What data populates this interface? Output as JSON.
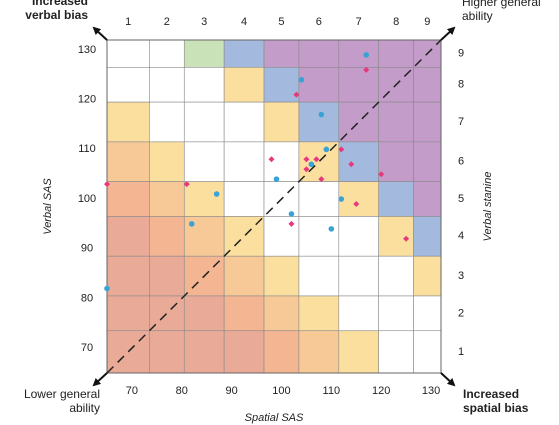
{
  "chart_data": {
    "type": "heatmap",
    "title": "",
    "xlabel": "Spatial SAS",
    "ylabel_left": "Verbal SAS",
    "ylabel_right": "Verbal stanine",
    "x_ticks_bottom": [
      "70",
      "80",
      "90",
      "100",
      "110",
      "120",
      "130"
    ],
    "y_ticks_left": [
      "70",
      "80",
      "90",
      "100",
      "110",
      "120",
      "130"
    ],
    "x_ticks_top": [
      "1",
      "2",
      "3",
      "4",
      "5",
      "6",
      "7",
      "8",
      "9"
    ],
    "y_ticks_right": [
      "1",
      "2",
      "3",
      "4",
      "5",
      "6",
      "7",
      "8",
      "9"
    ],
    "x_range": [
      65,
      132
    ],
    "y_range": [
      65,
      132
    ],
    "stanine_boundaries": [
      65,
      73.5,
      80.5,
      88.5,
      96.5,
      103.5,
      111.5,
      119.5,
      126.5,
      132
    ],
    "grid": true,
    "diagonal": "dashed line from lower-left to upper-right",
    "corner_labels": {
      "top_left": "Increased verbal bias",
      "top_right": "Higher general ability",
      "bottom_left": "Lower general ability",
      "bottom_right": "Increased spatial bias"
    },
    "cell_categories": [
      [
        0,
        0,
        5,
        6,
        7,
        7,
        7,
        7,
        7
      ],
      [
        0,
        0,
        0,
        4,
        6,
        7,
        7,
        7,
        7
      ],
      [
        4,
        0,
        0,
        0,
        4,
        6,
        7,
        7,
        7
      ],
      [
        3,
        4,
        0,
        0,
        0,
        4,
        6,
        7,
        7
      ],
      [
        2,
        3,
        4,
        0,
        0,
        0,
        4,
        6,
        7
      ],
      [
        1,
        2,
        3,
        4,
        0,
        0,
        0,
        4,
        6
      ],
      [
        1,
        1,
        2,
        3,
        4,
        0,
        0,
        0,
        4
      ],
      [
        1,
        1,
        1,
        2,
        3,
        4,
        0,
        0,
        0
      ],
      [
        1,
        1,
        1,
        1,
        2,
        3,
        4,
        0,
        0
      ]
    ],
    "cell_colors": [
      "#ffffff",
      "#e9ab97",
      "#f4b593",
      "#f6c997",
      "#fbdf9f",
      "#c9e2b8",
      "#a3b9de",
      "#c39cc9"
    ],
    "series": [
      {
        "marker_color": "#38a3d4",
        "points": [
          [
            65,
            82
          ],
          [
            82,
            95
          ],
          [
            87,
            101
          ],
          [
            99,
            104
          ],
          [
            102,
            97
          ],
          [
            104,
            124
          ],
          [
            106,
            107
          ],
          [
            108,
            117
          ],
          [
            109,
            110
          ],
          [
            110,
            94
          ],
          [
            112,
            100
          ],
          [
            117,
            129
          ]
        ]
      },
      {
        "marker_color": "#e8387d",
        "points": [
          [
            65,
            103
          ],
          [
            81,
            103
          ],
          [
            98,
            108
          ],
          [
            102,
            95
          ],
          [
            103,
            121
          ],
          [
            105,
            106
          ],
          [
            105,
            108
          ],
          [
            107,
            108
          ],
          [
            108,
            104
          ],
          [
            112,
            110
          ],
          [
            114,
            107
          ],
          [
            115,
            99
          ],
          [
            117,
            126
          ],
          [
            120,
            105
          ],
          [
            125,
            92
          ]
        ]
      }
    ]
  }
}
